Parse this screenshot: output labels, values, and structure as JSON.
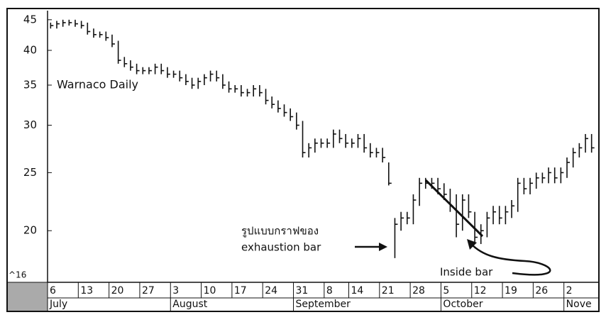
{
  "chart_data": {
    "type": "ohlc",
    "title": "Warnaco Daily",
    "log": true,
    "categories": [
      "6",
      null,
      null,
      null,
      null,
      "13",
      null,
      null,
      null,
      null,
      "20",
      null,
      null,
      null,
      null,
      "27",
      null,
      null,
      null,
      null,
      "3",
      null,
      null,
      null,
      null,
      "10",
      null,
      null,
      null,
      null,
      "17",
      null,
      null,
      null,
      null,
      "24",
      null,
      null,
      null,
      null,
      "31",
      null,
      null,
      null,
      null,
      "8",
      null,
      null,
      null,
      "14",
      null,
      null,
      null,
      null,
      "21",
      null,
      null,
      null,
      null,
      "28",
      null,
      null,
      null,
      null,
      "5",
      null,
      null,
      null,
      null,
      "12",
      null,
      null,
      null,
      null,
      "19",
      null,
      null,
      null,
      null,
      "26",
      null,
      null,
      null,
      null,
      "2",
      null,
      null,
      null,
      null
    ],
    "months": [
      {
        "value": 0,
        "label": "July"
      },
      {
        "value": 20,
        "label": "August"
      },
      {
        "value": 40,
        "label": "September"
      },
      {
        "value": 64,
        "label": "October"
      },
      {
        "value": 84,
        "label": "Nove"
      }
    ],
    "high": [
      44.5,
      44.8,
      45,
      45,
      45,
      44.8,
      44.5,
      43.5,
      43,
      43,
      42.5,
      41.5,
      39,
      38.5,
      38,
      37.5,
      37.5,
      38,
      38,
      37.5,
      37,
      37,
      36.5,
      36,
      36,
      36.5,
      37,
      37,
      36.5,
      35.5,
      35,
      35,
      34.5,
      35,
      35,
      34.5,
      33.5,
      33,
      32.5,
      32,
      31.5,
      30.5,
      28,
      28.5,
      28.5,
      28.5,
      29.5,
      29.5,
      29,
      28.5,
      29,
      29,
      28,
      27.5,
      27.5,
      26,
      21,
      21.5,
      21.5,
      23,
      24.5,
      24.5,
      24.5,
      24.5,
      24,
      23.5,
      23,
      23,
      23,
      21.5,
      20.5,
      21.5,
      22,
      22,
      22,
      22.5,
      24.5,
      24.5,
      24.5,
      25,
      25,
      25.5,
      25.5,
      25.5,
      26.5,
      27.5,
      28,
      29,
      29
    ],
    "low": [
      43.5,
      43.5,
      43.8,
      44,
      43.8,
      43.5,
      42.5,
      42,
      42,
      41.5,
      40.5,
      38,
      37.5,
      37,
      36.5,
      36.5,
      36.5,
      36.5,
      36.5,
      36,
      36,
      35.5,
      35,
      34.5,
      34.5,
      35,
      35.5,
      35.5,
      34.5,
      34,
      34,
      33.5,
      33.5,
      33.5,
      33.5,
      32.5,
      32,
      31.5,
      31,
      30.5,
      29.5,
      26.5,
      26.5,
      27,
      27.5,
      27.5,
      27.5,
      28,
      27.5,
      27.5,
      27.5,
      27,
      26.5,
      26.5,
      26,
      23.8,
      18,
      20,
      20.5,
      20.5,
      22,
      23.5,
      23.5,
      23,
      22.5,
      21.5,
      19.5,
      20,
      21,
      19,
      19,
      19.5,
      20.5,
      20.5,
      20.5,
      21,
      21.5,
      23,
      23,
      23.5,
      24,
      24,
      24,
      24,
      24.5,
      25.5,
      26.5,
      27,
      27
    ],
    "close": [
      44,
      44.3,
      44.5,
      44.5,
      44.3,
      44,
      43,
      42.5,
      42.5,
      42,
      41,
      38.5,
      38,
      37.5,
      37,
      37,
      37,
      37.5,
      37,
      36.5,
      36.5,
      36,
      35.5,
      35,
      35.5,
      36,
      36.5,
      36,
      35,
      34.5,
      34.5,
      34,
      34,
      34.5,
      34,
      33,
      32.5,
      32,
      31.5,
      31,
      30,
      27,
      27.5,
      28,
      28,
      28,
      29,
      28.5,
      28,
      28,
      28.5,
      27.5,
      27,
      27,
      26.5,
      24,
      20.5,
      21,
      21,
      22.5,
      24,
      24,
      24,
      23.5,
      23,
      22,
      20.5,
      22.5,
      21.5,
      19.5,
      20,
      21,
      21.5,
      21,
      21.5,
      22,
      24,
      23.5,
      24,
      24.5,
      24.5,
      25,
      24.5,
      25,
      26,
      27,
      27.5,
      28.5,
      27.5
    ],
    "ylim": [
      16.4,
      46.6
    ],
    "yticks": [
      20,
      25,
      30,
      35,
      40,
      45
    ],
    "axis_note": "^16",
    "annotations": [
      "รูปแบบกราฟของ",
      "exhaustion bar",
      "Inside bar"
    ]
  }
}
